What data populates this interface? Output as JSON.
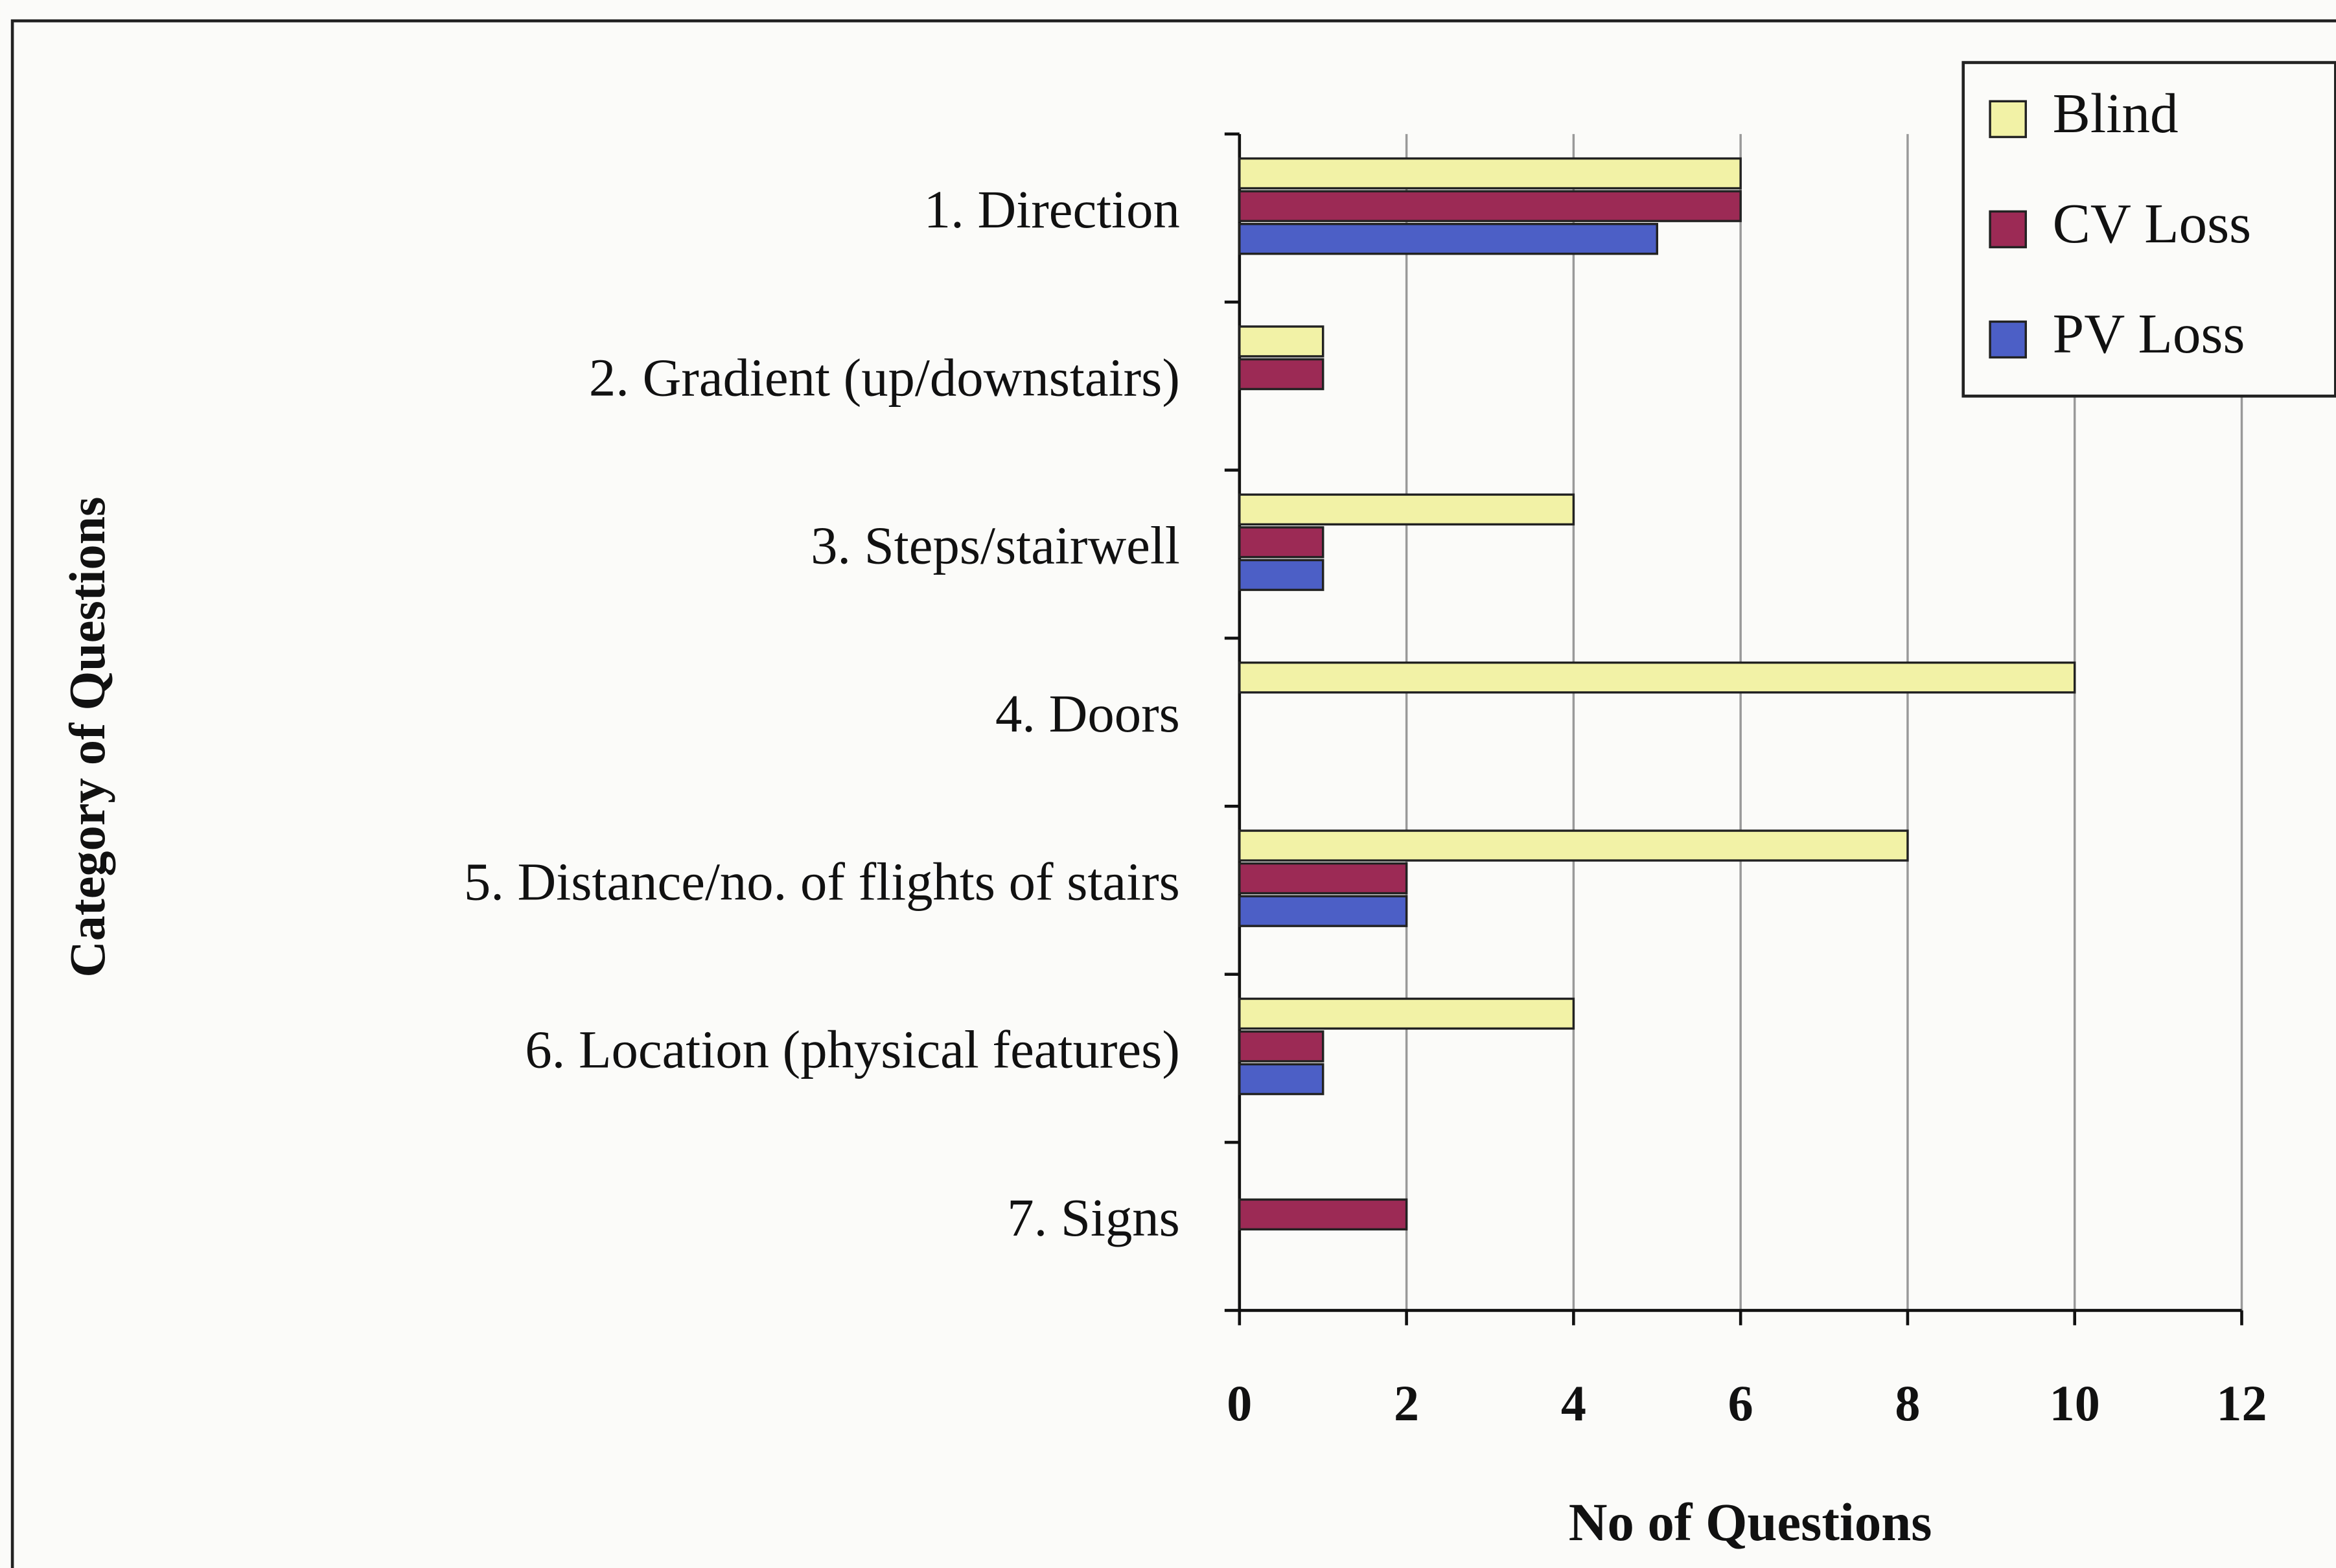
{
  "chart_data": {
    "type": "barh",
    "xlabel": "No of Questions",
    "ylabel": "Category of Questions",
    "categories": [
      "1. Direction",
      "2. Gradient (up/downstairs)",
      "3. Steps/stairwell",
      "4. Doors",
      "5. Distance/no. of flights of stairs",
      "6. Location (physical features)",
      "7. Signs"
    ],
    "series": [
      {
        "name": "Blind",
        "color": "#f2f2a6",
        "values": [
          6,
          1,
          4,
          10,
          8,
          4,
          0
        ]
      },
      {
        "name": "CV Loss",
        "color": "#9c2a55",
        "values": [
          6,
          1,
          1,
          0,
          2,
          1,
          2
        ]
      },
      {
        "name": "PV Loss",
        "color": "#4c5fc6",
        "values": [
          5,
          0,
          1,
          0,
          2,
          1,
          0
        ]
      }
    ],
    "xlim": [
      0,
      12
    ],
    "xticks": [
      0,
      2,
      4,
      6,
      8,
      10,
      12
    ],
    "grid": true,
    "legend": "upper right"
  }
}
